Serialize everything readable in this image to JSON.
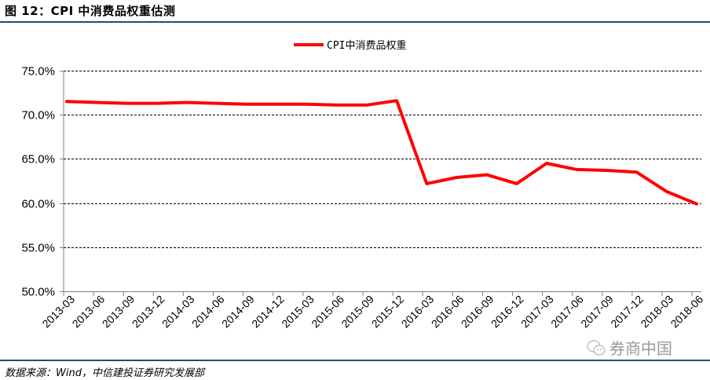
{
  "figure": {
    "title": "图 12：CPI 中消费品权重估测",
    "source": "数据来源：Wind，中信建投证券研究发展部",
    "watermark": "券商中国"
  },
  "colors": {
    "series": "#ff0000",
    "rule": "#1f4e79",
    "axis": "#808080",
    "grid": "#000000"
  },
  "chart_data": {
    "type": "line",
    "title": "",
    "xlabel": "",
    "ylabel": "",
    "ylim": [
      50,
      75
    ],
    "yticks": [
      "50.0%",
      "55.0%",
      "60.0%",
      "65.0%",
      "70.0%",
      "75.0%"
    ],
    "grid": "horizontal dashed",
    "legend_position": "top-center",
    "categories": [
      "2013-03",
      "2013-06",
      "2013-09",
      "2013-12",
      "2014-03",
      "2014-06",
      "2014-09",
      "2014-12",
      "2015-03",
      "2015-06",
      "2015-09",
      "2015-12",
      "2016-03",
      "2016-06",
      "2016-09",
      "2016-12",
      "2017-03",
      "2017-06",
      "2017-09",
      "2017-12",
      "2018-03",
      "2018-06"
    ],
    "series": [
      {
        "name": "CPI中消费品权重",
        "values": [
          71.5,
          71.4,
          71.3,
          71.3,
          71.4,
          71.3,
          71.2,
          71.2,
          71.2,
          71.1,
          71.1,
          71.6,
          62.2,
          62.9,
          63.2,
          62.2,
          64.5,
          63.8,
          63.7,
          63.5,
          61.3,
          59.9
        ]
      }
    ]
  }
}
